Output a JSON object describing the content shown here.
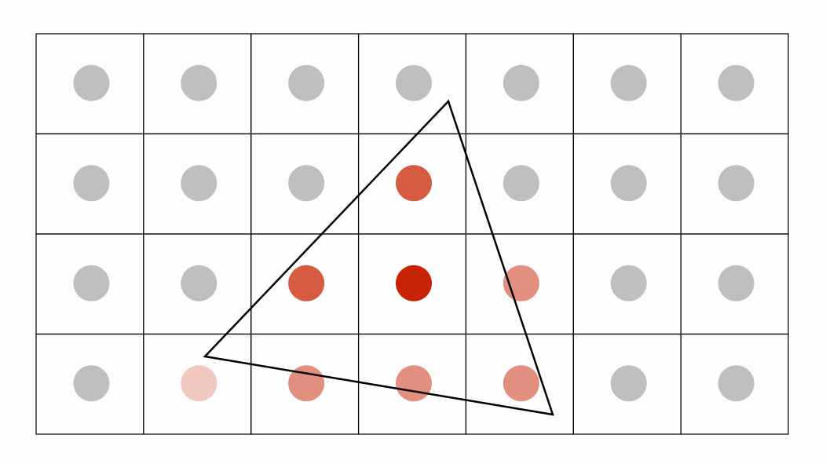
{
  "grid": {
    "rows": 4,
    "cols": 7,
    "coverage_levels": [
      [
        0,
        0,
        0,
        0,
        0,
        0,
        0
      ],
      [
        0,
        0,
        0,
        3,
        0,
        0,
        0
      ],
      [
        0,
        0,
        3,
        4,
        2,
        0,
        0
      ],
      [
        0,
        1,
        2,
        2,
        2,
        0,
        0
      ]
    ]
  },
  "colors": {
    "background": "#fdfdfd",
    "grid_line": "#000000",
    "triangle": "#000000",
    "levels": [
      "#bfbfbf",
      "#f0c8c0",
      "#e38f80",
      "#d65b43",
      "#c72306"
    ]
  }
}
